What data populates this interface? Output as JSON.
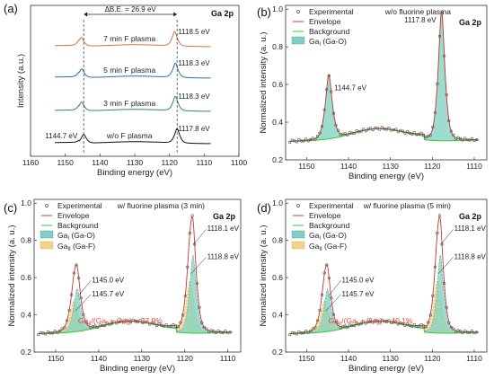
{
  "chart_data": [
    {
      "panel": "(a)",
      "type": "line",
      "title": "Ga 2p",
      "xlabel": "Binding energy (eV)",
      "ylabel": "Intensity (a.u.)",
      "xlim": [
        1160,
        1100
      ],
      "xticks": [
        1160,
        1150,
        1140,
        1130,
        1120,
        1110,
        1100
      ],
      "series": [
        {
          "name": "w/o F plasma",
          "color": "#111111",
          "peaks": [
            {
              "x": 1144.7,
              "label": "1144.7 eV"
            },
            {
              "x": 1117.8,
              "label": "1117.8 eV"
            }
          ]
        },
        {
          "name": "3 min F plasma",
          "color": "#2e8b57",
          "peaks": [
            {
              "x": 1145.3
            },
            {
              "x": 1118.3,
              "label": "1118.3 eV"
            }
          ]
        },
        {
          "name": "5 min F plasma",
          "color": "#2a6fb0",
          "peaks": [
            {
              "x": 1145.3
            },
            {
              "x": 1118.3,
              "label": "1118.3 eV"
            }
          ]
        },
        {
          "name": "7 min F plasma",
          "color": "#d2733a",
          "peaks": [
            {
              "x": 1145.4
            },
            {
              "x": 1118.5,
              "label": "1118.5 eV"
            }
          ]
        }
      ],
      "annotation": "ΔB.E. = 26.9 eV",
      "reference_lines": [
        1144.7,
        1117.8
      ]
    },
    {
      "panel": "(b)",
      "type": "line",
      "title": "Ga 2p",
      "subtitle": "w/o fluorine plasma",
      "xlabel": "Binding energy (eV)",
      "ylabel": "Normalized intensity (a. u.)",
      "xlim": [
        1155,
        1107
      ],
      "ylim": [
        0.2,
        1.02
      ],
      "xticks": [
        1150,
        1140,
        1130,
        1120,
        1110
      ],
      "yticks": [
        0.2,
        0.4,
        0.6,
        0.8,
        1.0
      ],
      "legend": [
        "Experimental",
        "Envelope",
        "Background",
        "GaI (Ga-O)"
      ],
      "legend_position": "top-left",
      "components": [
        {
          "name": "GaI (Ga-O)",
          "color": "#3cb4a0",
          "peaks": [
            {
              "x": 1144.7,
              "height": 0.66,
              "label": "1144.7 eV"
            },
            {
              "x": 1117.8,
              "height": 1.0,
              "label": "1117.8 eV"
            }
          ]
        }
      ]
    },
    {
      "panel": "(c)",
      "type": "line",
      "title": "Ga 2p",
      "subtitle": "w/ fluorine plasma (3 min)",
      "xlabel": "Binding energy (eV)",
      "ylabel": "Normalized intensity (a. u.)",
      "xlim": [
        1155,
        1107
      ],
      "ylim": [
        0.2,
        1.02
      ],
      "xticks": [
        1150,
        1140,
        1130,
        1120,
        1110
      ],
      "yticks": [
        0.2,
        0.4,
        0.6,
        0.8,
        1.0
      ],
      "legend": [
        "Experimental",
        "Envelope",
        "Background",
        "GaI (Ga-O)",
        "GaII (Ga-F)"
      ],
      "legend_position": "top-left",
      "components": [
        {
          "name": "GaI (Ga-O)",
          "color": "#3cb4a0",
          "peaks": [
            {
              "x": 1145.0,
              "label": "1145.0 eV"
            },
            {
              "x": 1118.1,
              "label": "1118.1 eV"
            }
          ]
        },
        {
          "name": "GaII (Ga-F)",
          "color": "#e8b84a",
          "peaks": [
            {
              "x": 1145.7,
              "label": "1145.7 eV"
            },
            {
              "x": 1118.8,
              "label": "1118.8 eV"
            }
          ]
        }
      ],
      "ratio_label": "GaII/(GaI + GaII) = 37.9%"
    },
    {
      "panel": "(d)",
      "type": "line",
      "title": "Ga 2p",
      "subtitle": "w/ fluorine plasma (5 min)",
      "xlabel": "Binding energy (eV)",
      "ylabel": "Normalized intensity (a. u.)",
      "xlim": [
        1155,
        1107
      ],
      "ylim": [
        0.2,
        1.02
      ],
      "xticks": [
        1150,
        1140,
        1130,
        1120,
        1110
      ],
      "yticks": [
        0.2,
        0.4,
        0.6,
        0.8,
        1.0
      ],
      "legend": [
        "Experimental",
        "Envelope",
        "Background",
        "GaI (Ga-O)",
        "GaII (Ga-F)"
      ],
      "legend_position": "top-left",
      "components": [
        {
          "name": "GaI (Ga-O)",
          "color": "#3cb4a0",
          "peaks": [
            {
              "x": 1145.0,
              "label": "1145.0 eV"
            },
            {
              "x": 1118.1,
              "label": "1118.1 eV"
            }
          ]
        },
        {
          "name": "GaII (Ga-F)",
          "color": "#e8b84a",
          "peaks": [
            {
              "x": 1145.7,
              "label": "1145.7 eV"
            },
            {
              "x": 1118.8,
              "label": "1118.8 eV"
            }
          ]
        }
      ],
      "ratio_label": "GaII/(GaI + GaII) = 40.1%"
    }
  ],
  "colors": {
    "experimental": "#555555",
    "envelope": "#c0392b",
    "background": "#33cc33",
    "ga_o_fill": "#7fd0c0",
    "ga_f_fill": "#f3d28a"
  }
}
